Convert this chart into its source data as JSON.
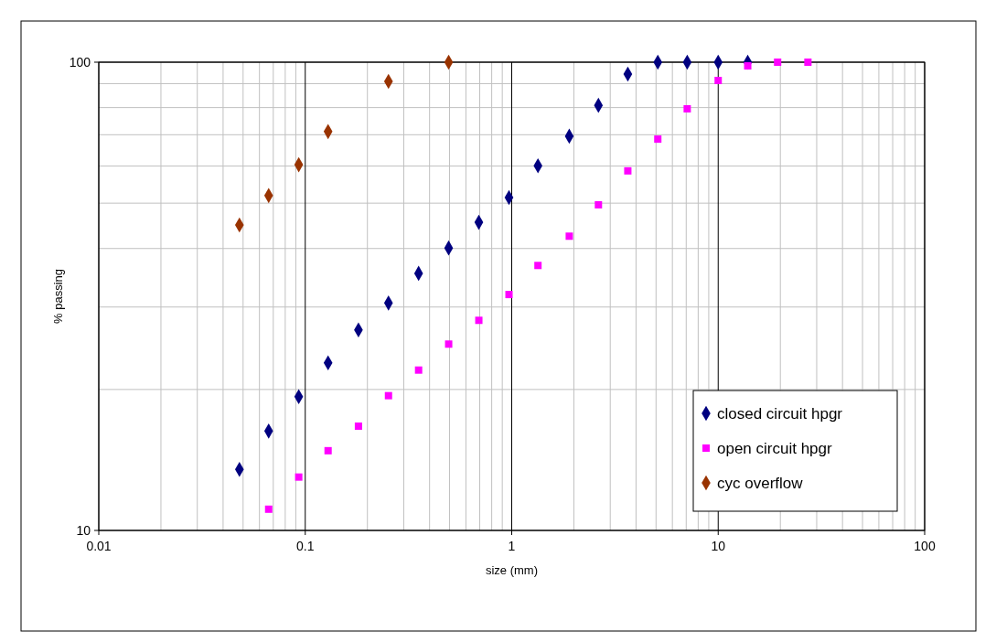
{
  "chart_data": {
    "type": "scatter",
    "xlabel": "size (mm)",
    "ylabel": "% passing",
    "log": "xy",
    "grid": true,
    "legend": "bottom right",
    "xlim": [
      0.01,
      100
    ],
    "ylim": [
      10,
      100
    ],
    "xticks": [
      0.01,
      0.1,
      1,
      10,
      100
    ],
    "yticks": [
      10,
      100
    ],
    "series": [
      {
        "name": "closed circuit hpgr",
        "color": "#000080",
        "marker": "diamond",
        "x": [
          0.048,
          0.0665,
          0.093,
          0.129,
          0.181,
          0.253,
          0.354,
          0.495,
          0.693,
          0.97,
          1.34,
          1.9,
          2.63,
          3.65,
          5.1,
          7.08,
          10,
          13.9
        ],
        "values": [
          13.5,
          16.3,
          19.3,
          22.8,
          26.8,
          30.6,
          35.4,
          40.1,
          45.5,
          51.4,
          60.1,
          69.5,
          80.9,
          94.3,
          100,
          100,
          100,
          100
        ]
      },
      {
        "name": "open circuit hpgr",
        "color": "#ff00ff",
        "marker": "square",
        "x": [
          0.0665,
          0.093,
          0.129,
          0.181,
          0.253,
          0.354,
          0.495,
          0.693,
          0.97,
          1.34,
          1.9,
          2.63,
          3.65,
          5.1,
          7.08,
          10,
          13.9,
          19.4,
          27.2
        ],
        "values": [
          11.1,
          13,
          14.8,
          16.7,
          19.4,
          22,
          25,
          28.1,
          31.9,
          36.8,
          42.5,
          49.6,
          58.6,
          68.5,
          79.5,
          91.4,
          98.2,
          100,
          100
        ]
      },
      {
        "name": "cyc overflow",
        "color": "#993300",
        "marker": "diamond",
        "x": [
          0.048,
          0.0665,
          0.093,
          0.129,
          0.253,
          0.495
        ],
        "values": [
          44.9,
          51.9,
          60.4,
          71.1,
          91,
          100
        ]
      }
    ]
  }
}
